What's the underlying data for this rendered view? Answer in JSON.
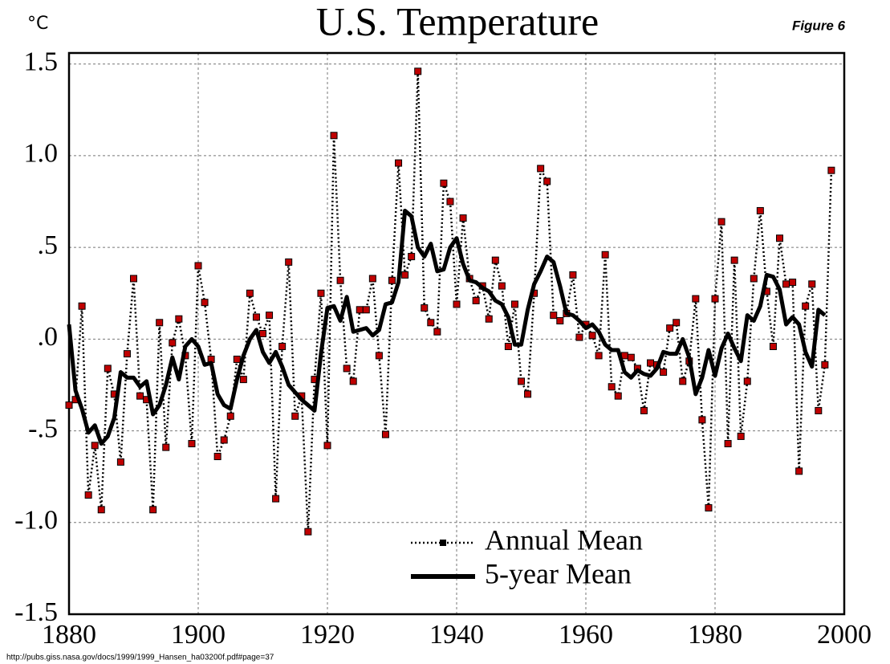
{
  "chart_data": {
    "type": "line",
    "title": "U.S. Temperature",
    "y_unit": "°C",
    "figure_label": "Figure 6",
    "source": "http://pubs.giss.nasa.gov/docs/1999/1999_Hansen_ha03200f.pdf#page=37",
    "x": [
      1880,
      1881,
      1882,
      1883,
      1884,
      1885,
      1886,
      1887,
      1888,
      1889,
      1890,
      1891,
      1892,
      1893,
      1894,
      1895,
      1896,
      1897,
      1898,
      1899,
      1900,
      1901,
      1902,
      1903,
      1904,
      1905,
      1906,
      1907,
      1908,
      1909,
      1910,
      1911,
      1912,
      1913,
      1914,
      1915,
      1916,
      1917,
      1918,
      1919,
      1920,
      1921,
      1922,
      1923,
      1924,
      1925,
      1926,
      1927,
      1928,
      1929,
      1930,
      1931,
      1932,
      1933,
      1934,
      1935,
      1936,
      1937,
      1938,
      1939,
      1940,
      1941,
      1942,
      1943,
      1944,
      1945,
      1946,
      1947,
      1948,
      1949,
      1950,
      1951,
      1952,
      1953,
      1954,
      1955,
      1956,
      1957,
      1958,
      1959,
      1960,
      1961,
      1962,
      1963,
      1964,
      1965,
      1966,
      1967,
      1968,
      1969,
      1970,
      1971,
      1972,
      1973,
      1974,
      1975,
      1976,
      1977,
      1978,
      1979,
      1980,
      1981,
      1982,
      1983,
      1984,
      1985,
      1986,
      1987,
      1988,
      1989,
      1990,
      1991,
      1992,
      1993,
      1994,
      1995,
      1996,
      1997,
      1998
    ],
    "series": [
      {
        "name": "Annual Mean",
        "color": "#c00000",
        "style": "dotted-markers",
        "values": [
          -0.36,
          -0.33,
          0.18,
          -0.85,
          -0.58,
          -0.93,
          -0.16,
          -0.3,
          -0.67,
          -0.08,
          0.33,
          -0.31,
          -0.33,
          -0.93,
          0.09,
          -0.59,
          -0.02,
          0.11,
          -0.09,
          -0.57,
          0.4,
          0.2,
          -0.11,
          -0.64,
          -0.55,
          -0.42,
          -0.11,
          -0.22,
          0.25,
          0.12,
          0.03,
          0.13,
          -0.87,
          -0.04,
          0.42,
          -0.42,
          -0.31,
          -1.05,
          -0.22,
          0.25,
          -0.58,
          1.11,
          0.32,
          -0.16,
          -0.23,
          0.16,
          0.16,
          0.33,
          -0.09,
          -0.52,
          0.32,
          0.96,
          0.35,
          0.45,
          1.46,
          0.17,
          0.09,
          0.04,
          0.85,
          0.75,
          0.19,
          0.66,
          0.33,
          0.21,
          0.29,
          0.11,
          0.43,
          0.29,
          -0.04,
          0.19,
          -0.23,
          -0.3,
          0.25,
          0.93,
          0.86,
          0.13,
          0.1,
          0.14,
          0.35,
          0.01,
          0.08,
          0.02,
          -0.09,
          0.46,
          -0.26,
          -0.31,
          -0.09,
          -0.1,
          -0.16,
          -0.39,
          -0.13,
          -0.14,
          -0.18,
          0.06,
          0.09,
          -0.23,
          -0.12,
          0.22,
          -0.44,
          -0.92,
          0.22,
          0.64,
          -0.57,
          0.43,
          -0.53,
          -0.23,
          0.33,
          0.7,
          0.26,
          -0.04,
          0.55,
          0.3,
          0.31,
          -0.72,
          0.18,
          0.3,
          -0.39,
          -0.14,
          0.92
        ]
      },
      {
        "name": "5-year Mean",
        "color": "#000000",
        "style": "thick",
        "values": [
          0.08,
          -0.28,
          -0.38,
          -0.51,
          -0.47,
          -0.57,
          -0.53,
          -0.43,
          -0.18,
          -0.21,
          -0.21,
          -0.26,
          -0.23,
          -0.41,
          -0.36,
          -0.25,
          -0.1,
          -0.22,
          -0.04,
          0.0,
          -0.04,
          -0.14,
          -0.13,
          -0.3,
          -0.36,
          -0.38,
          -0.22,
          -0.09,
          0.0,
          0.05,
          -0.07,
          -0.13,
          -0.07,
          -0.15,
          -0.25,
          -0.29,
          -0.33,
          -0.36,
          -0.39,
          -0.08,
          0.17,
          0.18,
          0.1,
          0.23,
          0.04,
          0.05,
          0.06,
          0.02,
          0.05,
          0.19,
          0.2,
          0.31,
          0.7,
          0.67,
          0.5,
          0.45,
          0.52,
          0.37,
          0.38,
          0.5,
          0.55,
          0.41,
          0.32,
          0.31,
          0.28,
          0.26,
          0.21,
          0.19,
          0.12,
          -0.03,
          -0.03,
          0.16,
          0.3,
          0.37,
          0.45,
          0.42,
          0.29,
          0.14,
          0.13,
          0.1,
          0.06,
          0.08,
          0.04,
          -0.03,
          -0.06,
          -0.06,
          -0.18,
          -0.21,
          -0.17,
          -0.19,
          -0.2,
          -0.16,
          -0.07,
          -0.08,
          -0.08,
          0.0,
          -0.1,
          -0.3,
          -0.21,
          -0.06,
          -0.2,
          -0.05,
          0.03,
          -0.05,
          -0.12,
          0.13,
          0.1,
          0.18,
          0.35,
          0.34,
          0.27,
          0.08,
          0.12,
          0.08,
          -0.07,
          -0.15,
          0.16,
          0.13,
          null
        ]
      }
    ],
    "xlim": [
      1880,
      2000
    ],
    "xticks": [
      1880,
      1900,
      1920,
      1940,
      1960,
      1980,
      2000
    ],
    "ylim": [
      -1.5,
      1.56
    ],
    "yticks": [
      1.5,
      {
        "value": 1.0,
        "label": "1.0"
      },
      {
        "value": 0.5,
        "label": ".5"
      },
      {
        "value": 0,
        "label": ".0"
      },
      {
        "value": -0.5,
        "label": "-.5"
      },
      {
        "value": -1.0,
        "label": "-1.0"
      },
      -1.5
    ],
    "grid": true
  }
}
